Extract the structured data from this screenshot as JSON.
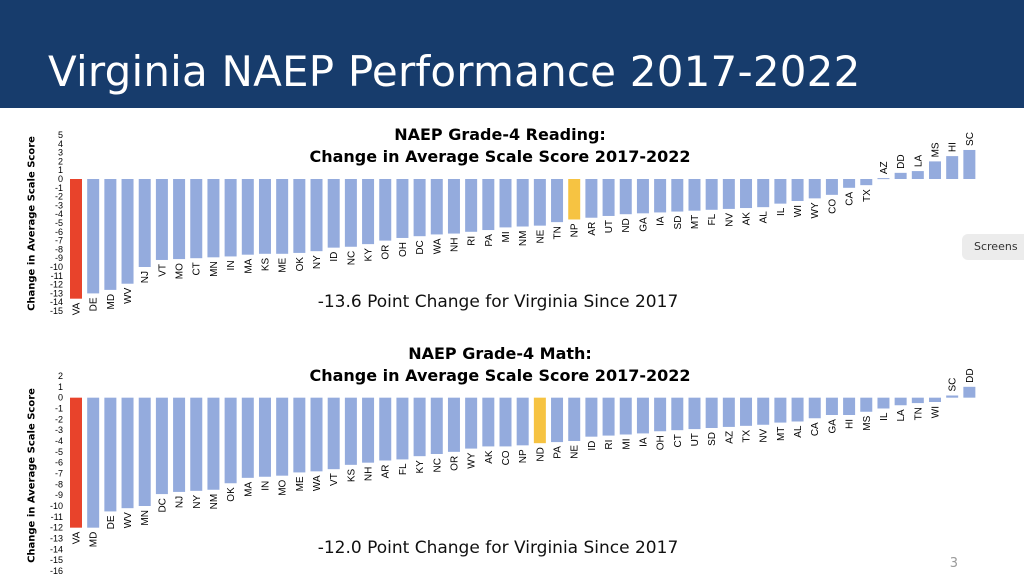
{
  "slide": {
    "title": "Virginia NAEP Performance 2017-2022",
    "page_number": "3",
    "screenshot_tag": "Screens"
  },
  "colors": {
    "header": "#173c6c",
    "bar": "#94abdd",
    "highlight_state": "#e8432b",
    "national_public": "#f6c342"
  },
  "chart_data": [
    {
      "type": "bar",
      "title_line1": "NAEP Grade-4 Reading:",
      "title_line2": "Change in Average Scale Score 2017-2022",
      "ylabel": "Change in Average Scale Score",
      "xlabel": "",
      "ylim": [
        -15,
        5
      ],
      "yticks": [
        5,
        4,
        3,
        2,
        1,
        0,
        -1,
        -2,
        -3,
        -4,
        -5,
        -6,
        -7,
        -8,
        -9,
        -10,
        -11,
        -12,
        -13,
        -14,
        -15
      ],
      "caption": "-13.6 Point Change for Virginia Since 2017",
      "highlight": "VA",
      "national": "NP",
      "categories": [
        "VA",
        "DE",
        "MD",
        "WV",
        "NJ",
        "VT",
        "MO",
        "CT",
        "MN",
        "IN",
        "MA",
        "KS",
        "ME",
        "OK",
        "NY",
        "ID",
        "NC",
        "KY",
        "OR",
        "OH",
        "DC",
        "WA",
        "NH",
        "RI",
        "PA",
        "MI",
        "NM",
        "NE",
        "TN",
        "NP",
        "AR",
        "UT",
        "ND",
        "GA",
        "IA",
        "SD",
        "MT",
        "FL",
        "NV",
        "AK",
        "AL",
        "IL",
        "WI",
        "WY",
        "CO",
        "CA",
        "TX",
        "AZ",
        "DD",
        "LA",
        "MS",
        "HI",
        "SC"
      ],
      "values": [
        -13.6,
        -13.0,
        -12.6,
        -11.9,
        -10.0,
        -9.2,
        -9.1,
        -9.0,
        -8.9,
        -8.8,
        -8.6,
        -8.5,
        -8.5,
        -8.4,
        -8.2,
        -7.8,
        -7.7,
        -7.4,
        -7.0,
        -6.7,
        -6.5,
        -6.3,
        -6.2,
        -6.0,
        -5.8,
        -5.5,
        -5.4,
        -5.3,
        -4.9,
        -4.6,
        -4.4,
        -4.2,
        -4.0,
        -3.9,
        -3.8,
        -3.7,
        -3.6,
        -3.5,
        -3.4,
        -3.3,
        -3.2,
        -2.8,
        -2.5,
        -2.2,
        -1.8,
        -1.0,
        -0.7,
        0.1,
        0.7,
        0.9,
        2.0,
        2.6,
        3.3
      ]
    },
    {
      "type": "bar",
      "title_line1": "NAEP Grade-4 Math:",
      "title_line2": "Change in Average Scale Score 2017-2022",
      "ylabel": "Change in Average Scale Score",
      "xlabel": "",
      "ylim": [
        -16,
        2
      ],
      "yticks": [
        2,
        1,
        0,
        -1,
        -2,
        -3,
        -4,
        -5,
        -6,
        -7,
        -8,
        -9,
        -10,
        -11,
        -12,
        -13,
        -14,
        -15,
        -16
      ],
      "caption": "-12.0 Point Change for Virginia Since 2017",
      "highlight": "VA",
      "national": "ND",
      "categories": [
        "VA",
        "MD",
        "DE",
        "WV",
        "MN",
        "DC",
        "NJ",
        "NY",
        "NM",
        "OK",
        "MA",
        "IN",
        "MO",
        "ME",
        "WA",
        "VT",
        "KS",
        "NH",
        "AR",
        "FL",
        "KY",
        "NC",
        "OR",
        "WY",
        "AK",
        "CO",
        "NP",
        "ND",
        "PA",
        "NE",
        "ID",
        "RI",
        "MI",
        "IA",
        "OH",
        "CT",
        "UT",
        "SD",
        "AZ",
        "TX",
        "NV",
        "MT",
        "AL",
        "CA",
        "GA",
        "HI",
        "MS",
        "IL",
        "LA",
        "TN",
        "WI",
        "SC",
        "DD"
      ],
      "values": [
        -12.0,
        -12.0,
        -10.5,
        -10.2,
        -10.0,
        -8.9,
        -8.7,
        -8.6,
        -8.5,
        -7.9,
        -7.4,
        -7.3,
        -7.2,
        -6.9,
        -6.8,
        -6.6,
        -6.2,
        -6.0,
        -5.8,
        -5.7,
        -5.4,
        -5.2,
        -5.0,
        -4.7,
        -4.5,
        -4.5,
        -4.4,
        -4.2,
        -4.1,
        -4.0,
        -3.6,
        -3.5,
        -3.4,
        -3.3,
        -3.1,
        -3.0,
        -2.9,
        -2.8,
        -2.7,
        -2.6,
        -2.5,
        -2.3,
        -2.2,
        -1.9,
        -1.6,
        -1.6,
        -1.3,
        -1.0,
        -0.7,
        -0.5,
        -0.4,
        0.2,
        1.0
      ]
    }
  ]
}
